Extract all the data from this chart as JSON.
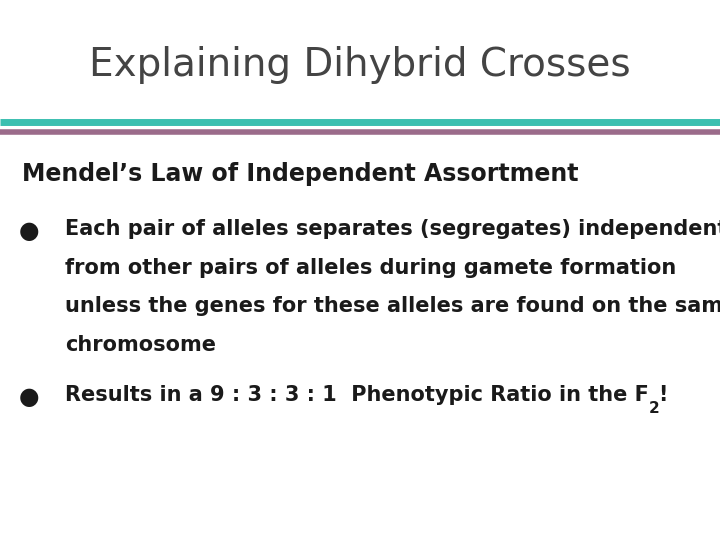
{
  "title": "Explaining Dihybrid Crosses",
  "title_fontsize": 28,
  "title_color": "#444444",
  "background_color": "#ffffff",
  "line1_color": "#3bbfb0",
  "line2_color": "#9b6b8a",
  "subheading": "Mendel’s Law of Independent Assortment",
  "subheading_fontsize": 17,
  "subheading_color": "#1a1a1a",
  "bullet1_lines": [
    "Each pair of alleles separates (segregates) independent",
    "from other pairs of alleles during gamete formation",
    "unless the genes for these alleles are found on the same",
    "chromosome"
  ],
  "bullet2_main": "Results in a 9 : 3 : 3 : 1  Phenotypic Ratio in the F",
  "bullet2_subscript": "2",
  "bullet2_suffix": "!",
  "bullet_fontsize": 15,
  "bullet_color": "#1a1a1a",
  "bullet_marker": "●",
  "fig_width": 7.2,
  "fig_height": 5.4,
  "dpi": 100
}
